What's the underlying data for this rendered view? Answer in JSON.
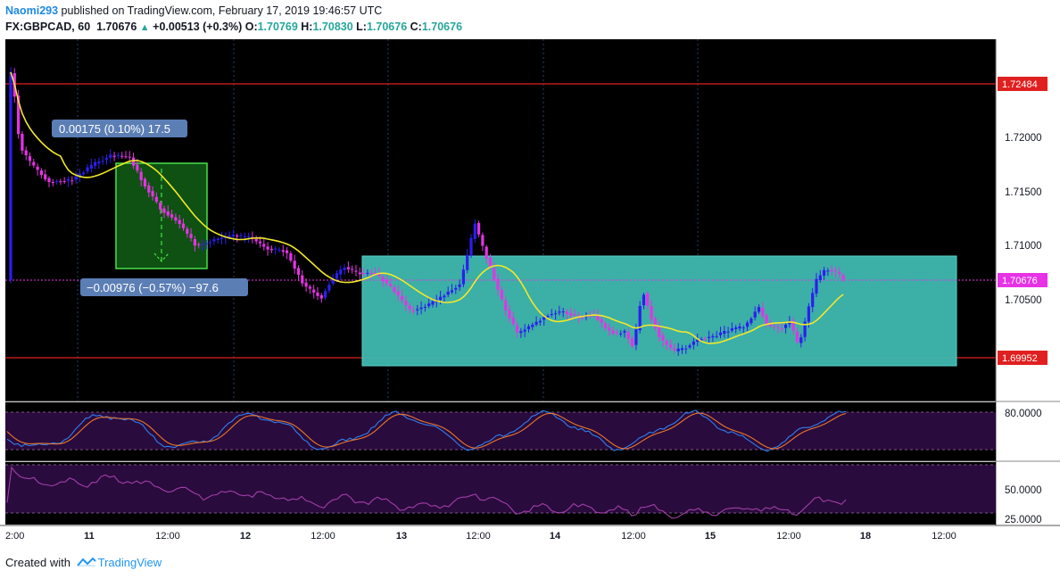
{
  "header": {
    "author": "Naomi293",
    "published_text": "published on TradingView.com, February 17, 2019 19:46:57 UTC",
    "symbol": "FX:GBPCAD, 60",
    "last": "1.70676",
    "change": "+0.00513 (+0.3%)",
    "o_label": "O:",
    "o_value": "1.70769",
    "h_label": "H:",
    "h_value": "1.70830",
    "l_label": "L:",
    "l_value": "1.70676",
    "c_label": "C:",
    "c_value": "1.70676"
  },
  "price_axis": {
    "ticks": [
      "1.72000",
      "1.71500",
      "1.71000",
      "1.70500"
    ],
    "level_labels": [
      "1.72484",
      "1.69952"
    ],
    "current_label": "1.70676"
  },
  "measurements": {
    "up_label": "0.00175 (0.10%) 17.5",
    "down_label": "−0.00976 (−0.57%) −97.6"
  },
  "oscillators": {
    "stoch_label": "80.0000",
    "rsi_labels": [
      "50.0000",
      "25.0000"
    ]
  },
  "time_axis": {
    "labels": [
      "2:00",
      "11",
      "12:00",
      "12",
      "12:00",
      "13",
      "12:00",
      "14",
      "12:00",
      "15",
      "12:00",
      "18",
      "12:00"
    ]
  },
  "footer": {
    "created_with": "Created with",
    "brand": "TradingView"
  },
  "colors": {
    "bull": "#2b1ef0",
    "bear": "#e633e6",
    "ma": "#f2e82a",
    "level": "#e02020",
    "box_green": "#0f5a14",
    "box_teal": "#3fb8b0",
    "bg": "#000000",
    "osc_bg": "#2a0b3d"
  }
}
